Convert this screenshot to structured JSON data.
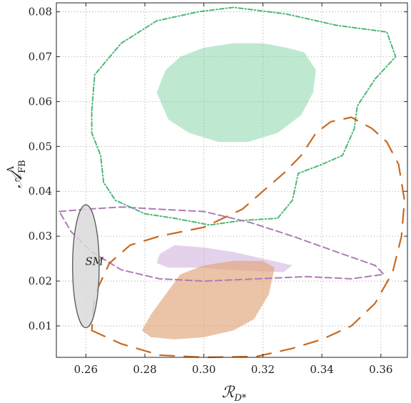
{
  "chart_data": {
    "type": "contour",
    "xlabel": "ℛD*",
    "ylabel": "𝒜FBΛ",
    "xlim": [
      0.25,
      0.369
    ],
    "ylim": [
      0.003,
      0.082
    ],
    "xticks": [
      "0.26",
      "0.28",
      "0.30",
      "0.32",
      "0.34",
      "0.36"
    ],
    "xtick_values": [
      0.26,
      0.28,
      0.3,
      0.32,
      0.34,
      0.36
    ],
    "yticks": [
      "0.01",
      "0.02",
      "0.03",
      "0.04",
      "0.05",
      "0.06",
      "0.07",
      "0.08"
    ],
    "ytick_values": [
      0.01,
      0.02,
      0.03,
      0.04,
      0.05,
      0.06,
      0.07,
      0.08
    ],
    "grid": true,
    "colors": {
      "green": "#6fcf97",
      "purple": "#c39bd3",
      "orange": "#e0a47a",
      "orange_line": "#c8691e",
      "purple_line": "#b07ab8",
      "green_line": "#4cb875",
      "sm_fill": "#d9d9d9"
    },
    "annotation": "SM",
    "sm_ellipse": {
      "cx": 0.26,
      "cy": 0.0233,
      "rx": 0.0045,
      "ry": 0.0137
    },
    "regions": [
      {
        "id": "green-filled",
        "points": [
          [
            0.284,
            0.062
          ],
          [
            0.287,
            0.067
          ],
          [
            0.292,
            0.07
          ],
          [
            0.3,
            0.072
          ],
          [
            0.31,
            0.073
          ],
          [
            0.32,
            0.073
          ],
          [
            0.328,
            0.072
          ],
          [
            0.334,
            0.071
          ],
          [
            0.338,
            0.067
          ],
          [
            0.337,
            0.062
          ],
          [
            0.333,
            0.057
          ],
          [
            0.325,
            0.053
          ],
          [
            0.315,
            0.051
          ],
          [
            0.305,
            0.051
          ],
          [
            0.295,
            0.053
          ],
          [
            0.288,
            0.056
          ]
        ]
      },
      {
        "id": "purple-filled",
        "points": [
          [
            0.285,
            0.026
          ],
          [
            0.29,
            0.028
          ],
          [
            0.3,
            0.0275
          ],
          [
            0.31,
            0.0265
          ],
          [
            0.32,
            0.025
          ],
          [
            0.33,
            0.0235
          ],
          [
            0.327,
            0.022
          ],
          [
            0.318,
            0.0222
          ],
          [
            0.308,
            0.0225
          ],
          [
            0.298,
            0.023
          ],
          [
            0.288,
            0.023
          ],
          [
            0.284,
            0.024
          ]
        ]
      },
      {
        "id": "orange-filled",
        "points": [
          [
            0.279,
            0.009
          ],
          [
            0.282,
            0.0125
          ],
          [
            0.287,
            0.017
          ],
          [
            0.292,
            0.0215
          ],
          [
            0.3,
            0.0235
          ],
          [
            0.31,
            0.0245
          ],
          [
            0.32,
            0.0245
          ],
          [
            0.324,
            0.023
          ],
          [
            0.322,
            0.017
          ],
          [
            0.317,
            0.0115
          ],
          [
            0.31,
            0.009
          ],
          [
            0.3,
            0.0075
          ],
          [
            0.29,
            0.007
          ],
          [
            0.282,
            0.0075
          ]
        ]
      }
    ],
    "contours": [
      {
        "id": "green-dot-dash",
        "points": [
          [
            0.262,
            0.058
          ],
          [
            0.263,
            0.066
          ],
          [
            0.272,
            0.073
          ],
          [
            0.284,
            0.078
          ],
          [
            0.298,
            0.08
          ],
          [
            0.31,
            0.081
          ],
          [
            0.328,
            0.0795
          ],
          [
            0.345,
            0.077
          ],
          [
            0.362,
            0.0755
          ],
          [
            0.365,
            0.07
          ],
          [
            0.358,
            0.065
          ],
          [
            0.352,
            0.059
          ],
          [
            0.351,
            0.054
          ],
          [
            0.347,
            0.048
          ],
          [
            0.34,
            0.046
          ],
          [
            0.332,
            0.044
          ],
          [
            0.33,
            0.038
          ],
          [
            0.325,
            0.034
          ],
          [
            0.313,
            0.0335
          ],
          [
            0.302,
            0.0325
          ],
          [
            0.29,
            0.034
          ],
          [
            0.28,
            0.035
          ],
          [
            0.27,
            0.038
          ],
          [
            0.266,
            0.042
          ],
          [
            0.265,
            0.048
          ],
          [
            0.262,
            0.053
          ]
        ]
      },
      {
        "id": "purple-dashed",
        "points": [
          [
            0.251,
            0.0355
          ],
          [
            0.26,
            0.036
          ],
          [
            0.272,
            0.0365
          ],
          [
            0.285,
            0.036
          ],
          [
            0.3,
            0.0355
          ],
          [
            0.316,
            0.033
          ],
          [
            0.33,
            0.03
          ],
          [
            0.345,
            0.0265
          ],
          [
            0.358,
            0.0235
          ],
          [
            0.361,
            0.0215
          ],
          [
            0.35,
            0.0205
          ],
          [
            0.335,
            0.021
          ],
          [
            0.318,
            0.0205
          ],
          [
            0.3,
            0.02
          ],
          [
            0.285,
            0.0205
          ],
          [
            0.272,
            0.0225
          ],
          [
            0.262,
            0.0265
          ],
          [
            0.255,
            0.031
          ]
        ]
      },
      {
        "id": "orange-longdash",
        "points": [
          [
            0.262,
            0.009
          ],
          [
            0.272,
            0.006
          ],
          [
            0.285,
            0.0035
          ],
          [
            0.3,
            0.003
          ],
          [
            0.318,
            0.0032
          ],
          [
            0.33,
            0.005
          ],
          [
            0.34,
            0.007
          ],
          [
            0.35,
            0.01
          ],
          [
            0.358,
            0.015
          ],
          [
            0.364,
            0.022
          ],
          [
            0.367,
            0.03
          ],
          [
            0.368,
            0.038
          ],
          [
            0.366,
            0.046
          ],
          [
            0.362,
            0.051
          ],
          [
            0.357,
            0.054
          ],
          [
            0.35,
            0.0565
          ],
          [
            0.343,
            0.0555
          ],
          [
            0.338,
            0.053
          ],
          [
            0.333,
            0.048
          ],
          [
            0.327,
            0.044
          ],
          [
            0.32,
            0.04
          ],
          [
            0.313,
            0.036
          ],
          [
            0.3,
            0.032
          ],
          [
            0.285,
            0.03
          ],
          [
            0.275,
            0.028
          ],
          [
            0.268,
            0.024
          ],
          [
            0.263,
            0.017
          ]
        ]
      }
    ]
  }
}
